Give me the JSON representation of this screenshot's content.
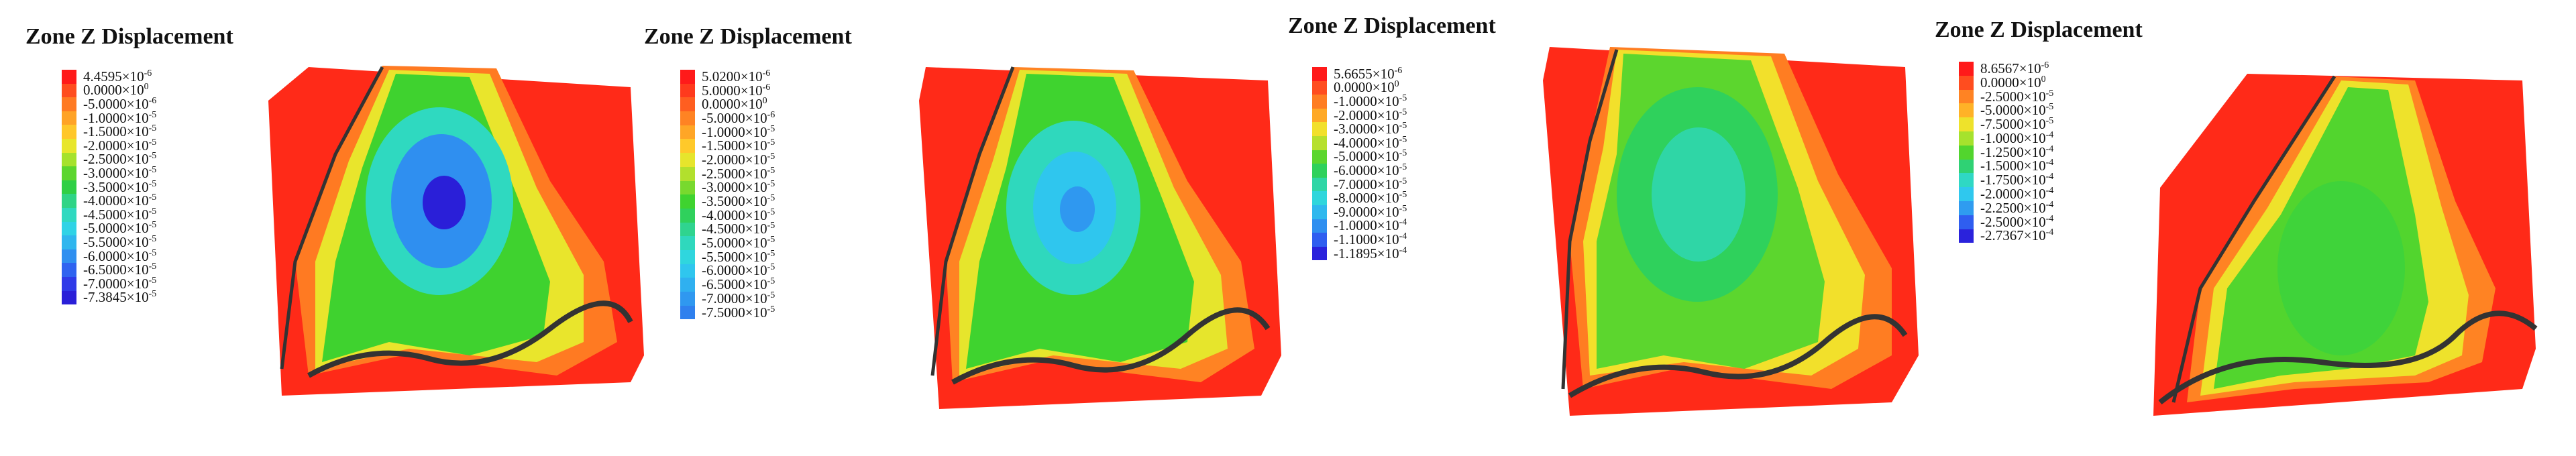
{
  "panels": [
    {
      "title": "Zone Z Displacement",
      "legend": [
        {
          "label": "4.4595×10",
          "exp": "-6",
          "color": "#ff1a1a"
        },
        {
          "label": "0.0000×10",
          "exp": "0",
          "color": "#ff4d1f"
        },
        {
          "label": "-5.0000×10",
          "exp": "-6",
          "color": "#ff7a22"
        },
        {
          "label": "-1.0000×10",
          "exp": "-5",
          "color": "#ffa326"
        },
        {
          "label": "-1.5000×10",
          "exp": "-5",
          "color": "#ffc72a"
        },
        {
          "label": "-2.0000×10",
          "exp": "-5",
          "color": "#e8e62c"
        },
        {
          "label": "-2.5000×10",
          "exp": "-5",
          "color": "#a6e22d"
        },
        {
          "label": "-3.0000×10",
          "exp": "-5",
          "color": "#5cd62e"
        },
        {
          "label": "-3.5000×10",
          "exp": "-5",
          "color": "#2fcf45"
        },
        {
          "label": "-4.0000×10",
          "exp": "-5",
          "color": "#2fd486"
        },
        {
          "label": "-4.5000×10",
          "exp": "-5",
          "color": "#2fd9c0"
        },
        {
          "label": "-5.0000×10",
          "exp": "-5",
          "color": "#2fd3e6"
        },
        {
          "label": "-5.5000×10",
          "exp": "-5",
          "color": "#2fb6ee"
        },
        {
          "label": "-6.0000×10",
          "exp": "-5",
          "color": "#2f8ff0"
        },
        {
          "label": "-6.5000×10",
          "exp": "-5",
          "color": "#2f63f0"
        },
        {
          "label": "-7.0000×10",
          "exp": "-5",
          "color": "#2f3ae8"
        },
        {
          "label": "-7.3845×10",
          "exp": "-5",
          "color": "#2a1fd8"
        }
      ]
    },
    {
      "title": "Zone Z Displacement",
      "legend": [
        {
          "label": "5.0200×10",
          "exp": "-6",
          "color": "#ff1a1a"
        },
        {
          "label": "5.0000×10",
          "exp": "-6",
          "color": "#ff3a1d"
        },
        {
          "label": "0.0000×10",
          "exp": "0",
          "color": "#ff5e20"
        },
        {
          "label": "-5.0000×10",
          "exp": "-6",
          "color": "#ff8323"
        },
        {
          "label": "-1.0000×10",
          "exp": "-5",
          "color": "#ffa626"
        },
        {
          "label": "-1.5000×10",
          "exp": "-5",
          "color": "#ffc92a"
        },
        {
          "label": "-2.0000×10",
          "exp": "-5",
          "color": "#e6e52c"
        },
        {
          "label": "-2.5000×10",
          "exp": "-5",
          "color": "#b2e02d"
        },
        {
          "label": "-3.0000×10",
          "exp": "-5",
          "color": "#78d92e"
        },
        {
          "label": "-3.5000×10",
          "exp": "-5",
          "color": "#3fd32f"
        },
        {
          "label": "-4.0000×10",
          "exp": "-5",
          "color": "#2fd15c"
        },
        {
          "label": "-4.5000×10",
          "exp": "-5",
          "color": "#2fd48f"
        },
        {
          "label": "-5.0000×10",
          "exp": "-5",
          "color": "#2fd8bd"
        },
        {
          "label": "-5.5000×10",
          "exp": "-5",
          "color": "#2fd6de"
        },
        {
          "label": "-6.0000×10",
          "exp": "-5",
          "color": "#2fc6ee"
        },
        {
          "label": "-6.5000×10",
          "exp": "-5",
          "color": "#2fb0f0"
        },
        {
          "label": "-7.0000×10",
          "exp": "-5",
          "color": "#2f98f0"
        },
        {
          "label": "-7.5000×10",
          "exp": "-5",
          "color": "#2f80ee"
        }
      ]
    },
    {
      "title": "Zone Z Displacement",
      "legend": [
        {
          "label": "5.6655×10",
          "exp": "-6",
          "color": "#ff1a1a"
        },
        {
          "label": "0.0000×10",
          "exp": "0",
          "color": "#ff4d1f"
        },
        {
          "label": "-1.0000×10",
          "exp": "-5",
          "color": "#ff7d22"
        },
        {
          "label": "-2.0000×10",
          "exp": "-5",
          "color": "#ffa926"
        },
        {
          "label": "-3.0000×10",
          "exp": "-5",
          "color": "#f2e02b"
        },
        {
          "label": "-4.0000×10",
          "exp": "-5",
          "color": "#b6e02d"
        },
        {
          "label": "-5.0000×10",
          "exp": "-5",
          "color": "#5cd62e"
        },
        {
          "label": "-6.0000×10",
          "exp": "-5",
          "color": "#2fd15c"
        },
        {
          "label": "-7.0000×10",
          "exp": "-5",
          "color": "#2fd6a6"
        },
        {
          "label": "-8.0000×10",
          "exp": "-5",
          "color": "#2fd6dc"
        },
        {
          "label": "-9.0000×10",
          "exp": "-5",
          "color": "#2fb8ee"
        },
        {
          "label": "-1.0000×10",
          "exp": "-4",
          "color": "#2f8ff0"
        },
        {
          "label": "-1.1000×10",
          "exp": "-4",
          "color": "#2f5ef0"
        },
        {
          "label": "-1.1895×10",
          "exp": "-4",
          "color": "#2a22dc"
        }
      ]
    },
    {
      "title": "Zone Z Displacement",
      "legend": [
        {
          "label": "8.6567×10",
          "exp": "-6",
          "color": "#ff1a1a"
        },
        {
          "label": "0.0000×10",
          "exp": "0",
          "color": "#ff4d1f"
        },
        {
          "label": "-2.5000×10",
          "exp": "-5",
          "color": "#ff8323"
        },
        {
          "label": "-5.0000×10",
          "exp": "-5",
          "color": "#ffb227"
        },
        {
          "label": "-7.5000×10",
          "exp": "-5",
          "color": "#eee22b"
        },
        {
          "label": "-1.0000×10",
          "exp": "-4",
          "color": "#a6e22d"
        },
        {
          "label": "-1.2500×10",
          "exp": "-4",
          "color": "#52d52e"
        },
        {
          "label": "-1.5000×10",
          "exp": "-4",
          "color": "#2fd274"
        },
        {
          "label": "-1.7500×10",
          "exp": "-4",
          "color": "#2fd8c4"
        },
        {
          "label": "-2.0000×10",
          "exp": "-4",
          "color": "#2fc8ee"
        },
        {
          "label": "-2.2500×10",
          "exp": "-4",
          "color": "#2f9cf0"
        },
        {
          "label": "-2.5000×10",
          "exp": "-4",
          "color": "#2f5ef0"
        },
        {
          "label": "-2.7367×10",
          "exp": "-4",
          "color": "#2a22dc"
        }
      ]
    }
  ]
}
